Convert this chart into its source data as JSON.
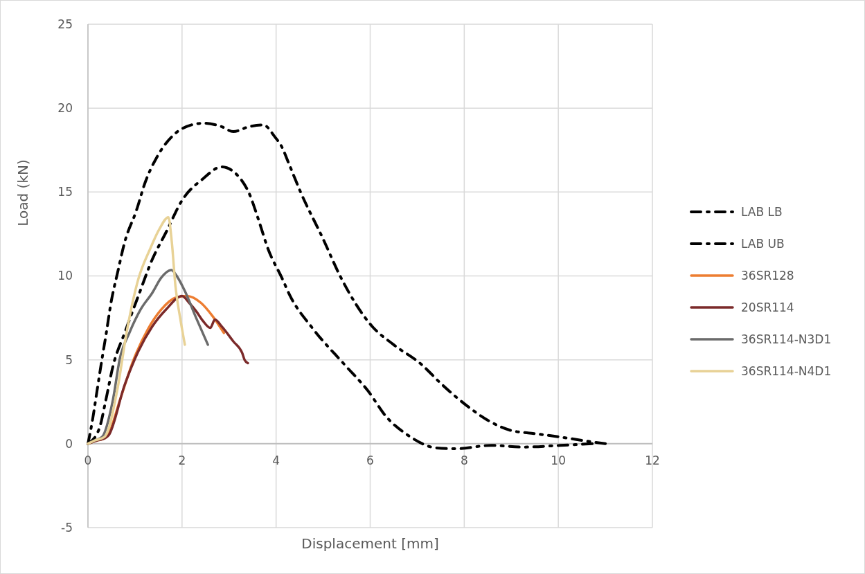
{
  "chart_data": {
    "type": "line",
    "xlabel": "Displacement [mm]",
    "ylabel": "Load (kN)",
    "xlim": [
      0,
      12
    ],
    "ylim": [
      -5,
      25
    ],
    "xticks": [
      0,
      2,
      4,
      6,
      8,
      10,
      12
    ],
    "yticks": [
      -5,
      0,
      5,
      10,
      15,
      20,
      25
    ],
    "grid": true,
    "legend": "right",
    "series": [
      {
        "name": "LAB LB",
        "color": "#000000",
        "line_style": "dashed",
        "x": [
          0,
          0.24,
          0.38,
          0.53,
          0.78,
          1.07,
          1.37,
          1.66,
          2.0,
          2.45,
          2.84,
          3.24,
          3.43,
          3.62,
          3.83,
          4.12,
          4.3,
          4.77,
          5.46,
          5.94,
          6.36,
          6.78,
          7.41,
          7.83,
          8.57,
          9.25,
          10.04,
          10.72
        ],
        "values": [
          0,
          0.9,
          2.6,
          4.6,
          6.6,
          8.8,
          11,
          12.6,
          14.5,
          15.8,
          16.5,
          15.8,
          14.9,
          13.4,
          11.6,
          9.9,
          8.8,
          6.9,
          4.7,
          3.2,
          1.55,
          0.55,
          -0.25,
          -0.3,
          -0.1,
          -0.2,
          -0.1,
          0
        ]
      },
      {
        "name": "LAB UB",
        "color": "#000000",
        "line_style": "dashed",
        "x": [
          0,
          0.09,
          0.19,
          0.29,
          0.39,
          0.49,
          0.63,
          0.78,
          1.03,
          1.22,
          1.47,
          1.86,
          2.2,
          2.45,
          2.84,
          3.09,
          3.43,
          3.73,
          3.97,
          4.12,
          4.27,
          4.52,
          5.0,
          5.36,
          6.04,
          6.5,
          7.1,
          7.5,
          8.04,
          8.5,
          8.98,
          9.5,
          10.04,
          10.5,
          11.0
        ],
        "values": [
          0,
          1.3,
          3.1,
          4.9,
          6.6,
          8.4,
          10.2,
          12,
          13.9,
          15.6,
          17.1,
          18.5,
          19.0,
          19.1,
          18.9,
          18.6,
          18.9,
          19.0,
          18.3,
          17.7,
          16.7,
          15.0,
          12.2,
          10,
          7.0,
          5.9,
          4.7,
          3.6,
          2.3,
          1.4,
          0.8,
          0.6,
          0.4,
          0.2,
          0
        ]
      },
      {
        "name": "36SR128",
        "color": "#ed7d31",
        "x": [
          0,
          0.2,
          0.34,
          0.44,
          0.68,
          0.97,
          1.27,
          1.56,
          1.86,
          2.1,
          2.4,
          2.65,
          2.89
        ],
        "values": [
          0,
          0.2,
          0.3,
          0.6,
          2.6,
          5.0,
          6.8,
          8.0,
          8.7,
          8.8,
          8.4,
          7.6,
          6.6
        ]
      },
      {
        "name": "20SR114",
        "color": "#7b2a2a",
        "x": [
          0,
          0.2,
          0.34,
          0.44,
          0.78,
          1.07,
          1.37,
          1.66,
          2.0,
          2.15,
          2.3,
          2.45,
          2.6,
          2.7,
          2.84,
          3.09,
          3.28,
          3.33,
          3.4
        ],
        "values": [
          0,
          0.2,
          0.3,
          0.5,
          3.5,
          5.5,
          7.0,
          8.0,
          8.8,
          8.4,
          7.9,
          7.3,
          6.9,
          7.4,
          7.0,
          6.1,
          5.4,
          5.0,
          4.8
        ]
      },
      {
        "name": "36SR114-N3D1",
        "color": "#6b6b6b",
        "x": [
          0,
          0.15,
          0.3,
          0.53,
          0.68,
          0.88,
          1.12,
          1.37,
          1.56,
          1.77,
          1.91,
          2.06,
          2.3,
          2.55
        ],
        "values": [
          0,
          0.2,
          0.4,
          2.6,
          5.1,
          6.6,
          8.0,
          9.0,
          9.9,
          10.35,
          9.9,
          9.1,
          7.5,
          5.9
        ]
      },
      {
        "name": "36SR114-N4D1",
        "color": "#e8d296",
        "x": [
          0,
          0.15,
          0.35,
          0.63,
          0.82,
          1.07,
          1.32,
          1.52,
          1.71,
          1.78,
          1.86,
          1.96,
          2.06
        ],
        "values": [
          0,
          0.2,
          0.4,
          3.3,
          6.6,
          9.8,
          11.6,
          12.8,
          13.5,
          12.1,
          9.4,
          7.5,
          5.9
        ]
      }
    ]
  }
}
